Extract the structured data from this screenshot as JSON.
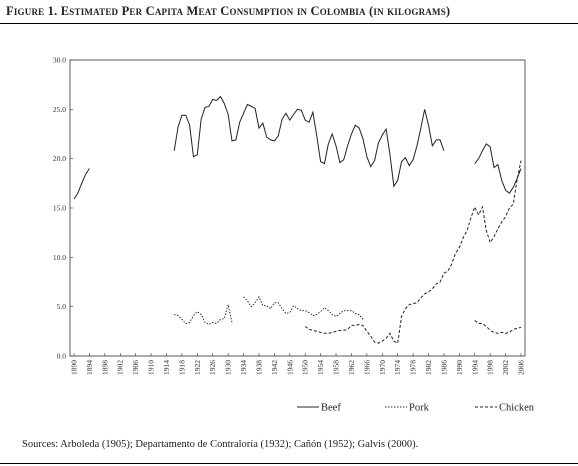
{
  "figure": {
    "title": "Figure 1. Estimated Per Capita Meat Consumption in Colombia (in kilograms)",
    "sources": "Sources: Arboleda (1905); Departamento de Contraloría (1932); Cañón (1952); Galvis (2000)."
  },
  "chart_data": {
    "type": "line",
    "title": "Figure 1. Estimated Per Capita Meat Consumption in Colombia (in kilograms)",
    "xlabel": "",
    "ylabel": "",
    "xlim": [
      1890,
      2006
    ],
    "ylim": [
      0,
      30
    ],
    "yticks": [
      "0.0",
      "5.0",
      "10.0",
      "15.0",
      "20.0",
      "25.0",
      "30.0"
    ],
    "xticks": [
      "1890",
      "1894",
      "1898",
      "1902",
      "1906",
      "1910",
      "1914",
      "1918",
      "1922",
      "1926",
      "1930",
      "1934",
      "1938",
      "1942",
      "1946",
      "1950",
      "1954",
      "1958",
      "1962",
      "1966",
      "1970",
      "1974",
      "1978",
      "1982",
      "1986",
      "1990",
      "1994",
      "1998",
      "2002",
      "2006"
    ],
    "grid": false,
    "legend_position": "bottom",
    "series": [
      {
        "name": "Beef",
        "style": "solid",
        "segments": [
          [
            [
              1890,
              15.9
            ],
            [
              1891,
              16.5
            ],
            [
              1892,
              17.5
            ],
            [
              1893,
              18.4
            ],
            [
              1894,
              19.0
            ]
          ],
          [
            [
              1916,
              20.8
            ],
            [
              1917,
              23.2
            ],
            [
              1918,
              24.4
            ],
            [
              1919,
              24.4
            ],
            [
              1920,
              23.4
            ],
            [
              1921,
              20.2
            ],
            [
              1922,
              20.4
            ],
            [
              1923,
              24.0
            ],
            [
              1924,
              25.2
            ],
            [
              1925,
              25.3
            ],
            [
              1926,
              26.0
            ],
            [
              1927,
              25.9
            ],
            [
              1928,
              26.3
            ],
            [
              1929,
              25.6
            ],
            [
              1930,
              24.5
            ],
            [
              1931,
              21.8
            ],
            [
              1932,
              21.9
            ],
            [
              1933,
              23.7
            ],
            [
              1934,
              24.6
            ],
            [
              1935,
              25.5
            ],
            [
              1936,
              25.3
            ],
            [
              1937,
              25.1
            ],
            [
              1938,
              23.1
            ],
            [
              1939,
              23.6
            ],
            [
              1940,
              22.2
            ],
            [
              1941,
              21.9
            ],
            [
              1942,
              21.8
            ],
            [
              1943,
              22.3
            ],
            [
              1944,
              24.0
            ],
            [
              1945,
              24.6
            ],
            [
              1946,
              23.9
            ],
            [
              1947,
              24.5
            ],
            [
              1948,
              25.0
            ],
            [
              1949,
              24.9
            ],
            [
              1950,
              23.9
            ],
            [
              1951,
              23.7
            ],
            [
              1952,
              24.7
            ],
            [
              1953,
              22.3
            ],
            [
              1954,
              19.7
            ],
            [
              1955,
              19.5
            ],
            [
              1956,
              21.5
            ],
            [
              1957,
              22.5
            ],
            [
              1958,
              21.3
            ],
            [
              1959,
              19.6
            ],
            [
              1960,
              19.9
            ],
            [
              1961,
              21.3
            ],
            [
              1962,
              22.5
            ],
            [
              1963,
              23.4
            ],
            [
              1964,
              23.1
            ],
            [
              1965,
              22.0
            ],
            [
              1966,
              20.2
            ],
            [
              1967,
              19.2
            ],
            [
              1968,
              19.8
            ],
            [
              1969,
              21.6
            ],
            [
              1970,
              22.4
            ],
            [
              1971,
              23.0
            ],
            [
              1972,
              20.4
            ],
            [
              1973,
              17.2
            ],
            [
              1974,
              17.8
            ],
            [
              1975,
              19.7
            ],
            [
              1976,
              20.1
            ],
            [
              1977,
              19.3
            ],
            [
              1978,
              19.9
            ],
            [
              1979,
              21.3
            ],
            [
              1980,
              23.1
            ],
            [
              1981,
              25.0
            ],
            [
              1982,
              23.4
            ],
            [
              1983,
              21.3
            ],
            [
              1984,
              21.9
            ],
            [
              1985,
              21.9
            ],
            [
              1986,
              20.8
            ]
          ],
          [
            [
              1994,
              19.5
            ],
            [
              1995,
              20.0
            ],
            [
              1996,
              20.8
            ],
            [
              1997,
              21.5
            ],
            [
              1998,
              21.2
            ],
            [
              1999,
              19.1
            ],
            [
              2000,
              19.4
            ],
            [
              2001,
              17.8
            ],
            [
              2002,
              16.8
            ],
            [
              2003,
              16.5
            ],
            [
              2004,
              17.1
            ],
            [
              2005,
              18.0
            ],
            [
              2006,
              19.0
            ]
          ]
        ]
      },
      {
        "name": "Pork",
        "style": "dotted",
        "segments": [
          [
            [
              1916,
              4.2
            ],
            [
              1917,
              4.1
            ],
            [
              1918,
              3.7
            ],
            [
              1919,
              3.3
            ],
            [
              1920,
              3.4
            ],
            [
              1921,
              4.1
            ],
            [
              1922,
              4.5
            ],
            [
              1923,
              4.2
            ],
            [
              1924,
              3.4
            ],
            [
              1925,
              3.2
            ],
            [
              1926,
              3.4
            ],
            [
              1927,
              3.3
            ],
            [
              1928,
              3.7
            ],
            [
              1929,
              3.8
            ],
            [
              1930,
              5.2
            ],
            [
              1931,
              3.4
            ]
          ],
          [
            [
              1934,
              6.0
            ],
            [
              1935,
              5.6
            ],
            [
              1936,
              5.0
            ],
            [
              1937,
              5.4
            ],
            [
              1938,
              6.0
            ],
            [
              1939,
              5.1
            ],
            [
              1940,
              5.1
            ],
            [
              1941,
              4.8
            ],
            [
              1942,
              5.4
            ],
            [
              1943,
              5.4
            ],
            [
              1944,
              4.8
            ],
            [
              1945,
              4.3
            ],
            [
              1946,
              4.4
            ],
            [
              1947,
              5.1
            ],
            [
              1948,
              4.8
            ],
            [
              1949,
              4.6
            ],
            [
              1950,
              4.6
            ],
            [
              1951,
              4.4
            ],
            [
              1952,
              4.1
            ],
            [
              1953,
              4.2
            ],
            [
              1954,
              4.5
            ],
            [
              1955,
              4.9
            ],
            [
              1956,
              4.6
            ],
            [
              1957,
              4.2
            ],
            [
              1958,
              4.0
            ],
            [
              1959,
              4.3
            ],
            [
              1960,
              4.6
            ],
            [
              1961,
              4.6
            ],
            [
              1962,
              4.6
            ],
            [
              1963,
              4.3
            ],
            [
              1964,
              4.2
            ],
            [
              1965,
              3.7
            ]
          ]
        ]
      },
      {
        "name": "Chicken",
        "style": "dashed",
        "segments": [
          [
            [
              1950,
              3.0
            ],
            [
              1951,
              2.7
            ],
            [
              1952,
              2.6
            ],
            [
              1953,
              2.5
            ],
            [
              1954,
              2.4
            ],
            [
              1955,
              2.3
            ],
            [
              1956,
              2.3
            ],
            [
              1957,
              2.4
            ],
            [
              1958,
              2.5
            ],
            [
              1959,
              2.6
            ],
            [
              1960,
              2.6
            ],
            [
              1961,
              2.7
            ],
            [
              1962,
              3.1
            ],
            [
              1963,
              3.1
            ],
            [
              1964,
              3.2
            ],
            [
              1965,
              3.1
            ],
            [
              1966,
              2.5
            ],
            [
              1967,
              2.0
            ],
            [
              1968,
              1.4
            ],
            [
              1969,
              1.3
            ],
            [
              1970,
              1.5
            ],
            [
              1971,
              1.8
            ],
            [
              1972,
              2.3
            ],
            [
              1973,
              1.5
            ],
            [
              1974,
              1.3
            ],
            [
              1975,
              4.0
            ],
            [
              1976,
              4.8
            ],
            [
              1977,
              5.2
            ],
            [
              1978,
              5.3
            ],
            [
              1979,
              5.4
            ],
            [
              1980,
              5.9
            ],
            [
              1981,
              6.3
            ],
            [
              1982,
              6.5
            ],
            [
              1983,
              6.8
            ],
            [
              1984,
              7.3
            ],
            [
              1985,
              7.5
            ],
            [
              1986,
              8.4
            ],
            [
              1987,
              8.6
            ],
            [
              1988,
              9.3
            ],
            [
              1989,
              10.4
            ],
            [
              1990,
              11.0
            ],
            [
              1991,
              12.0
            ],
            [
              1992,
              12.7
            ],
            [
              1993,
              14.0
            ],
            [
              1994,
              15.1
            ],
            [
              1995,
              14.3
            ],
            [
              1996,
              15.1
            ],
            [
              1997,
              12.7
            ],
            [
              1998,
              11.5
            ],
            [
              1999,
              12.1
            ],
            [
              2000,
              12.9
            ],
            [
              2001,
              13.6
            ],
            [
              2002,
              14.1
            ],
            [
              2003,
              15.0
            ],
            [
              2004,
              15.4
            ],
            [
              2005,
              17.9
            ],
            [
              2006,
              19.8
            ]
          ],
          [
            [
              1994,
              3.6
            ],
            [
              1995,
              3.3
            ],
            [
              1996,
              3.3
            ],
            [
              1997,
              3.0
            ],
            [
              1998,
              2.6
            ],
            [
              1999,
              2.4
            ],
            [
              2000,
              2.3
            ],
            [
              2001,
              2.4
            ],
            [
              2002,
              2.3
            ],
            [
              2003,
              2.4
            ],
            [
              2004,
              2.7
            ],
            [
              2005,
              2.8
            ],
            [
              2006,
              2.9
            ]
          ]
        ]
      }
    ]
  }
}
